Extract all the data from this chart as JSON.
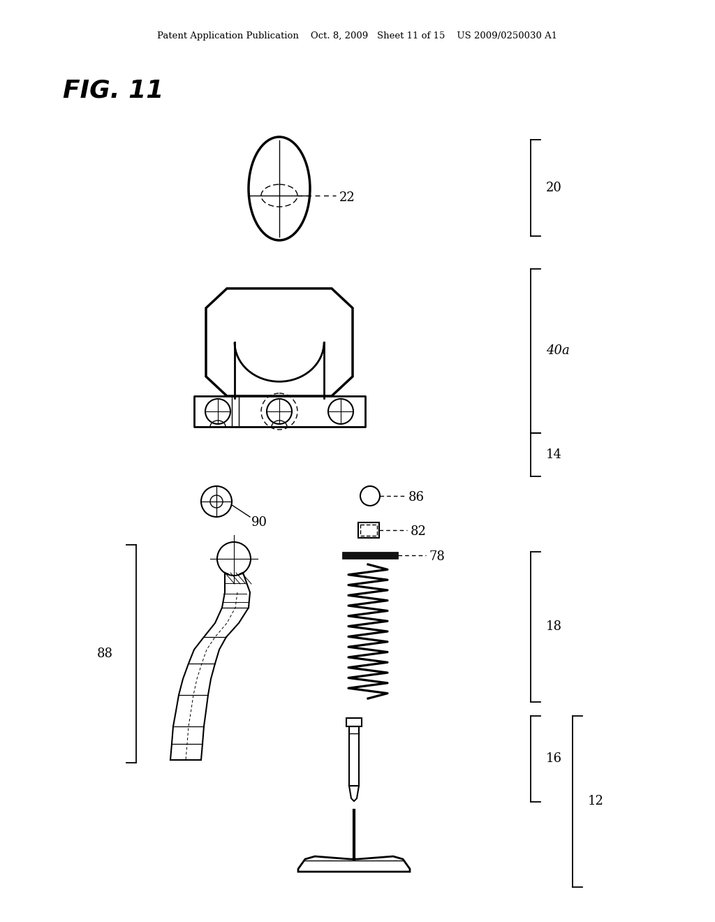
{
  "bg_color": "#ffffff",
  "header": "Patent Application Publication    Oct. 8, 2009   Sheet 11 of 15    US 2009/0250030 A1",
  "fig_label": "FIG. 11",
  "lw_main": 2.0,
  "lw_med": 1.5,
  "lw_thin": 1.0
}
